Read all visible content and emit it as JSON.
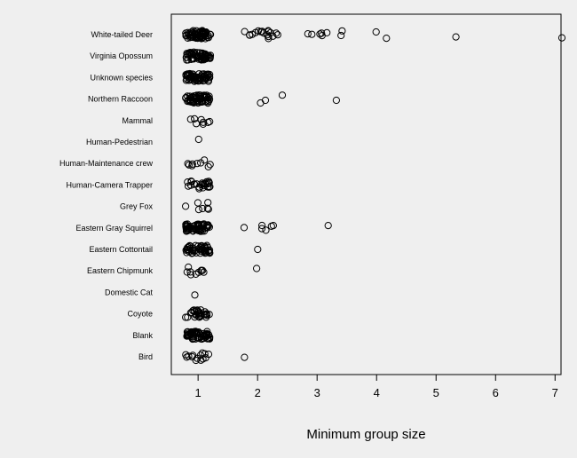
{
  "chart_data": {
    "type": "scatter",
    "title": "",
    "xlabel": "Minimum group size",
    "ylabel": "",
    "xlim": [
      0.55,
      7.1
    ],
    "x_ticks": [
      1,
      2,
      3,
      4,
      5,
      6,
      7
    ],
    "grid": false,
    "legend": "none",
    "jitter": true,
    "point_color": "#000000",
    "categories": [
      "White-tailed Deer",
      "Virginia Opossum",
      "Unknown species",
      "Northern Raccoon",
      "Mammal",
      "Human-Pedestrian",
      "Human-Maintenance crew",
      "Human-Camera Trapper",
      "Grey Fox",
      "Eastern Gray Squirrel",
      "Eastern Cottontail",
      "Eastern Chipmunk",
      "Domestic Cat",
      "Coyote",
      "Blank",
      "Bird"
    ],
    "series": [
      {
        "category": "White-tailed Deer",
        "x": [
          1,
          1,
          1,
          1,
          1,
          1,
          1,
          1,
          1,
          1,
          1,
          1,
          1,
          1,
          1,
          1,
          1,
          1,
          1,
          1,
          1,
          1,
          1,
          1,
          1,
          1,
          1,
          1,
          1,
          1,
          1,
          1,
          1,
          1,
          1,
          1,
          1,
          1,
          1,
          1,
          1,
          1,
          1,
          1,
          1,
          1,
          1,
          1,
          1,
          1,
          1,
          1,
          1,
          1,
          1,
          1,
          1,
          1,
          1,
          1,
          1,
          1,
          1,
          1,
          1,
          1,
          1,
          1,
          1,
          1,
          2,
          2,
          2,
          2,
          2,
          2,
          2,
          2,
          2,
          2,
          2,
          2,
          2,
          2,
          2,
          2,
          2,
          2,
          3,
          3,
          3,
          3,
          3,
          3,
          3,
          3,
          4,
          4,
          5,
          7
        ]
      },
      {
        "category": "Virginia Opossum",
        "x": [
          1,
          1,
          1,
          1,
          1,
          1,
          1,
          1,
          1,
          1,
          1,
          1,
          1,
          1,
          1,
          1,
          1,
          1,
          1,
          1,
          1,
          1,
          1,
          1,
          1,
          1,
          1,
          1,
          1,
          1,
          1,
          1,
          1,
          1,
          1,
          1,
          1,
          1,
          1,
          1,
          1,
          1,
          1,
          1,
          1,
          1,
          1,
          1,
          1,
          1,
          1,
          1,
          1,
          1,
          1,
          1,
          1,
          1,
          1,
          1
        ]
      },
      {
        "category": "Unknown species",
        "x": [
          1,
          1,
          1,
          1,
          1,
          1,
          1,
          1,
          1,
          1,
          1,
          1,
          1,
          1,
          1,
          1,
          1,
          1,
          1,
          1,
          1,
          1,
          1,
          1,
          1,
          1,
          1,
          1,
          1,
          1,
          1,
          1,
          1,
          1,
          1,
          1,
          1,
          1,
          1,
          1,
          1,
          1,
          1,
          1,
          1,
          1,
          1,
          1,
          1,
          1,
          1,
          1,
          1,
          1,
          1,
          1,
          1,
          1,
          1,
          1
        ]
      },
      {
        "category": "Northern Raccoon",
        "x": [
          1,
          1,
          1,
          1,
          1,
          1,
          1,
          1,
          1,
          1,
          1,
          1,
          1,
          1,
          1,
          1,
          1,
          1,
          1,
          1,
          1,
          1,
          1,
          1,
          1,
          1,
          1,
          1,
          1,
          1,
          1,
          1,
          1,
          1,
          1,
          1,
          1,
          1,
          1,
          1,
          1,
          1,
          1,
          1,
          1,
          1,
          1,
          1,
          1,
          1,
          1,
          1,
          1,
          1,
          1,
          1,
          1,
          1,
          1,
          1,
          2,
          2,
          2,
          3
        ]
      },
      {
        "category": "Mammal",
        "x": [
          1,
          1,
          1,
          1,
          1,
          1,
          1,
          1
        ]
      },
      {
        "category": "Human-Pedestrian",
        "x": [
          1
        ]
      },
      {
        "category": "Human-Maintenance crew",
        "x": [
          1,
          1,
          1,
          1,
          1,
          1,
          1,
          1,
          1
        ]
      },
      {
        "category": "Human-Camera Trapper",
        "x": [
          1,
          1,
          1,
          1,
          1,
          1,
          1,
          1,
          1,
          1,
          1,
          1,
          1,
          1,
          1,
          1,
          1,
          1,
          1,
          1,
          1,
          1,
          1,
          1,
          1,
          1
        ]
      },
      {
        "category": "Grey Fox",
        "x": [
          1,
          1,
          1,
          1,
          1,
          1,
          1
        ]
      },
      {
        "category": "Eastern Gray Squirrel",
        "x": [
          1,
          1,
          1,
          1,
          1,
          1,
          1,
          1,
          1,
          1,
          1,
          1,
          1,
          1,
          1,
          1,
          1,
          1,
          1,
          1,
          1,
          1,
          1,
          1,
          1,
          1,
          1,
          1,
          1,
          1,
          1,
          1,
          1,
          1,
          1,
          1,
          1,
          1,
          1,
          1,
          1,
          1,
          1,
          1,
          1,
          1,
          1,
          1,
          1,
          1,
          1,
          1,
          1,
          1,
          1,
          1,
          1,
          1,
          1,
          1,
          2,
          2,
          2,
          2,
          2,
          2,
          3
        ]
      },
      {
        "category": "Eastern Cottontail",
        "x": [
          1,
          1,
          1,
          1,
          1,
          1,
          1,
          1,
          1,
          1,
          1,
          1,
          1,
          1,
          1,
          1,
          1,
          1,
          1,
          1,
          1,
          1,
          1,
          1,
          1,
          1,
          1,
          1,
          1,
          1,
          1,
          1,
          1,
          1,
          1,
          1,
          1,
          1,
          1,
          1,
          1,
          1,
          1,
          1,
          1,
          1,
          1,
          1,
          1,
          1,
          2
        ]
      },
      {
        "category": "Eastern Chipmunk",
        "x": [
          1,
          1,
          1,
          1,
          1,
          1,
          1,
          1,
          1,
          1,
          2
        ]
      },
      {
        "category": "Domestic Cat",
        "x": [
          1
        ]
      },
      {
        "category": "Coyote",
        "x": [
          1,
          1,
          1,
          1,
          1,
          1,
          1,
          1,
          1,
          1,
          1,
          1,
          1,
          1,
          1,
          1,
          1,
          1,
          1,
          1,
          1,
          1,
          1,
          1,
          1,
          1,
          1,
          1,
          1,
          1
        ]
      },
      {
        "category": "Blank",
        "x": [
          1,
          1,
          1,
          1,
          1,
          1,
          1,
          1,
          1,
          1,
          1,
          1,
          1,
          1,
          1,
          1,
          1,
          1,
          1,
          1,
          1,
          1,
          1,
          1,
          1,
          1,
          1,
          1,
          1,
          1,
          1,
          1,
          1,
          1,
          1,
          1,
          1,
          1,
          1,
          1,
          1,
          1,
          1,
          1,
          1,
          1,
          1,
          1,
          1,
          1,
          1,
          1,
          1,
          1,
          1,
          1,
          1,
          1,
          1,
          1
        ]
      },
      {
        "category": "Bird",
        "x": [
          1,
          1,
          1,
          1,
          1,
          1,
          1,
          1,
          1,
          1,
          1,
          1,
          1,
          1,
          2
        ]
      }
    ]
  }
}
